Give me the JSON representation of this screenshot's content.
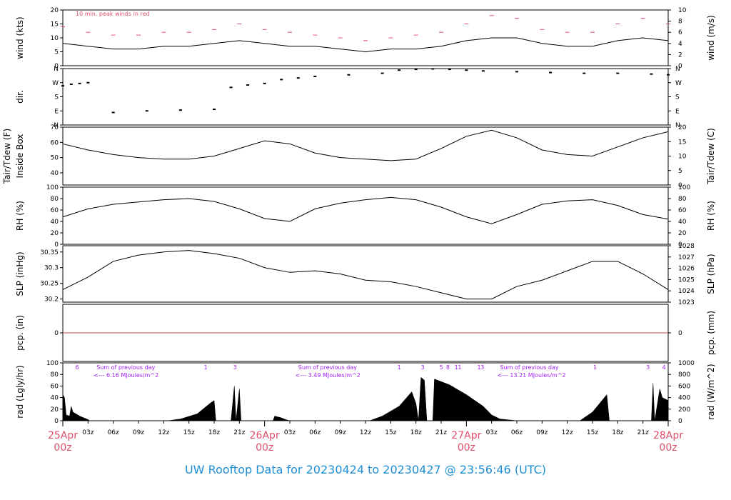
{
  "footer": {
    "title": "UW Rooftop Data for 20230424  to  20230427 @ 23:56:46  (UTC)"
  },
  "colors": {
    "peak": "#e0506a",
    "solar_labels": "#a020f0",
    "title": "#1f8fd6",
    "precip_line": "#c0504d"
  },
  "chart_data": [
    {
      "id": "wind",
      "type": "line",
      "ylabel": "wind (kts)",
      "ylabel2": "wind (m/s)",
      "ylim": [
        0,
        20
      ],
      "yticks": [
        0,
        5,
        10,
        15,
        20
      ],
      "y2ticks": [
        0,
        2,
        4,
        6,
        8,
        10
      ],
      "annotation": "10 min. peak winds in red",
      "series": [
        {
          "role": "mean",
          "color": "#000000",
          "x": [
            0,
            3,
            6,
            9,
            12,
            15,
            18,
            21,
            24,
            27,
            30,
            33,
            36,
            39,
            42,
            45,
            48,
            51,
            54,
            57,
            60,
            63,
            66,
            69,
            72
          ],
          "y": [
            8,
            7,
            6,
            6,
            7,
            7,
            8,
            9,
            8,
            7,
            7,
            6,
            5,
            6,
            6,
            7,
            9,
            10,
            10,
            8,
            7,
            7,
            9,
            10,
            9
          ]
        },
        {
          "role": "peak",
          "color": "#e0506a",
          "x": [
            0,
            3,
            6,
            9,
            12,
            15,
            18,
            21,
            24,
            27,
            30,
            33,
            36,
            39,
            42,
            45,
            48,
            51,
            54,
            57,
            60,
            63,
            66,
            69,
            72
          ],
          "y": [
            14,
            12,
            11,
            11,
            12,
            12,
            13,
            15,
            13,
            12,
            11,
            10,
            9,
            10,
            11,
            12,
            15,
            18,
            17,
            13,
            12,
            12,
            15,
            17,
            15
          ]
        }
      ]
    },
    {
      "id": "dir",
      "type": "scatter",
      "ylabel": "dir.",
      "yticks": [
        "N",
        "E",
        "S",
        "W",
        "N"
      ],
      "ylim": [
        0,
        360
      ],
      "series": [
        {
          "name": "",
          "x": [
            0,
            1,
            2,
            3,
            6,
            10,
            14,
            18,
            20,
            22,
            24,
            26,
            28,
            30,
            34,
            38,
            40,
            42,
            44,
            46,
            48,
            50,
            54,
            58,
            62,
            66,
            70,
            72
          ],
          "y": [
            250,
            260,
            265,
            270,
            80,
            90,
            95,
            100,
            240,
            255,
            265,
            290,
            300,
            310,
            320,
            330,
            350,
            355,
            358,
            355,
            350,
            345,
            340,
            335,
            330,
            330,
            325,
            320
          ]
        }
      ]
    },
    {
      "id": "temp",
      "type": "line",
      "ylabel": "Tair/Tdew (F)",
      "ylabel_sub": "Inside Box",
      "ylabel2": "Tair/Tdew (C)",
      "ylim": [
        32,
        70
      ],
      "yticks": [
        40,
        50,
        60,
        70
      ],
      "y2ticks": [
        0,
        5,
        10,
        15,
        20
      ],
      "series": [
        {
          "name": "",
          "x": [
            0,
            3,
            6,
            9,
            12,
            15,
            18,
            21,
            24,
            27,
            30,
            33,
            36,
            39,
            42,
            45,
            48,
            51,
            54,
            57,
            60,
            63,
            66,
            69,
            72
          ],
          "y": [
            59,
            55,
            52,
            50,
            49,
            49,
            51,
            56,
            61,
            59,
            53,
            50,
            49,
            48,
            49,
            56,
            64,
            68,
            63,
            55,
            52,
            51,
            57,
            63,
            67
          ]
        }
      ]
    },
    {
      "id": "rh",
      "type": "line",
      "ylabel": "RH (%)",
      "ylabel2": "RH (%)",
      "ylim": [
        0,
        100
      ],
      "yticks": [
        0,
        20,
        40,
        60,
        80,
        100
      ],
      "y2ticks": [
        0,
        20,
        40,
        60,
        80,
        100
      ],
      "series": [
        {
          "name": "",
          "x": [
            0,
            3,
            6,
            9,
            12,
            15,
            18,
            21,
            24,
            27,
            30,
            33,
            36,
            39,
            42,
            45,
            48,
            51,
            54,
            57,
            60,
            63,
            66,
            69,
            72
          ],
          "y": [
            48,
            62,
            70,
            74,
            78,
            80,
            75,
            62,
            45,
            40,
            62,
            72,
            78,
            82,
            78,
            65,
            48,
            36,
            52,
            70,
            76,
            78,
            68,
            52,
            44
          ]
        }
      ]
    },
    {
      "id": "slp",
      "type": "line",
      "ylabel": "SLP (inHg)",
      "ylabel2": "SLP (hPa)",
      "ylim": [
        30.19,
        30.37
      ],
      "yticks": [
        30.2,
        30.25,
        30.3,
        30.35
      ],
      "y2ticks": [
        1023,
        1024,
        1025,
        1026,
        1027,
        1028
      ],
      "series": [
        {
          "name": "",
          "x": [
            0,
            3,
            6,
            9,
            12,
            15,
            18,
            21,
            24,
            27,
            30,
            33,
            36,
            39,
            42,
            45,
            48,
            51,
            54,
            57,
            60,
            63,
            66,
            69,
            72
          ],
          "y": [
            30.23,
            30.27,
            30.32,
            30.34,
            30.35,
            30.355,
            30.345,
            30.33,
            30.3,
            30.285,
            30.29,
            30.28,
            30.26,
            30.255,
            30.24,
            30.22,
            30.2,
            30.2,
            30.24,
            30.26,
            30.29,
            30.32,
            30.32,
            30.28,
            30.23
          ]
        }
      ]
    },
    {
      "id": "pcp",
      "type": "line",
      "ylabel": "pcp. (in)",
      "ylabel2": "pcp. (mm)",
      "ylim": [
        -1,
        1
      ],
      "yticks": [
        0
      ],
      "y2ticks": [
        0
      ],
      "series": [
        {
          "name": "",
          "x": [
            0,
            72
          ],
          "y": [
            0,
            0
          ]
        }
      ]
    },
    {
      "id": "rad",
      "type": "area",
      "ylabel": "rad (Lgly/hr)",
      "ylabel2": "rad (W/m^2)",
      "ylim": [
        0,
        100
      ],
      "yticks": [
        0,
        20,
        40,
        60,
        80,
        100
      ],
      "y2ticks": [
        0,
        200,
        400,
        600,
        800,
        1000
      ],
      "day_notes": [
        {
          "x": 4,
          "line1": "Sum of previous day",
          "line2": "<--- 6.16 MJoules/m^2"
        },
        {
          "x": 28,
          "line1": "Sum of previous day",
          "line2": "<--- 3.49 MJoules/m^2"
        },
        {
          "x": 52,
          "line1": "Sum of previous day",
          "line2": "<--- 13.21 MJoules/m^2"
        }
      ],
      "top_numbers": [
        {
          "x": 1.7,
          "text": "6"
        },
        {
          "x": 17,
          "text": "1"
        },
        {
          "x": 20.5,
          "text": "3"
        },
        {
          "x": 40,
          "text": "1"
        },
        {
          "x": 42.8,
          "text": "3"
        },
        {
          "x": 45,
          "text": "5"
        },
        {
          "x": 45.8,
          "text": "8"
        },
        {
          "x": 46.8,
          "text": "1"
        },
        {
          "x": 47.2,
          "text": "1"
        },
        {
          "x": 49.5,
          "text": "1"
        },
        {
          "x": 49.9,
          "text": "3"
        },
        {
          "x": 63.3,
          "text": "1"
        },
        {
          "x": 69.6,
          "text": "3"
        },
        {
          "x": 71.5,
          "text": "4"
        }
      ],
      "series": [
        {
          "name": "",
          "x": [
            0,
            0.2,
            0.4,
            0.8,
            1,
            1.2,
            2,
            3,
            3.2,
            4,
            12.5,
            14,
            16,
            17.5,
            18,
            18.2,
            20,
            20.4,
            20.6,
            21,
            21.2,
            25,
            25.2,
            26,
            26.5,
            27,
            36.5,
            38,
            40,
            41.5,
            42,
            42.3,
            42.6,
            43,
            43.3,
            44,
            44.2,
            46,
            48,
            50,
            51,
            52,
            54,
            61.5,
            63,
            64.7,
            65,
            70,
            70.2,
            70.4,
            71,
            71.3,
            72
          ],
          "y": [
            45,
            40,
            10,
            8,
            25,
            15,
            8,
            2,
            0,
            0,
            0,
            3,
            12,
            30,
            35,
            0,
            0,
            60,
            0,
            55,
            0,
            0,
            8,
            5,
            2,
            0,
            0,
            8,
            25,
            50,
            30,
            0,
            75,
            70,
            0,
            0,
            72,
            62,
            45,
            25,
            10,
            3,
            0,
            0,
            15,
            45,
            0,
            0,
            65,
            0,
            55,
            40,
            35
          ]
        }
      ]
    },
    {
      "id": "xaxis",
      "type": "table",
      "xlim": [
        0,
        72
      ],
      "hour_ticks": [
        {
          "x": 3,
          "label": "03z"
        },
        {
          "x": 6,
          "label": "06z"
        },
        {
          "x": 9,
          "label": "09z"
        },
        {
          "x": 12,
          "label": "12z"
        },
        {
          "x": 15,
          "label": "15z"
        },
        {
          "x": 18,
          "label": "18z"
        },
        {
          "x": 21,
          "label": "21z"
        },
        {
          "x": 27,
          "label": "03z"
        },
        {
          "x": 30,
          "label": "06z"
        },
        {
          "x": 33,
          "label": "09z"
        },
        {
          "x": 36,
          "label": "12z"
        },
        {
          "x": 39,
          "label": "15z"
        },
        {
          "x": 42,
          "label": "18z"
        },
        {
          "x": 45,
          "label": "21z"
        },
        {
          "x": 51,
          "label": "03z"
        },
        {
          "x": 54,
          "label": "06z"
        },
        {
          "x": 57,
          "label": "09z"
        },
        {
          "x": 60,
          "label": "12z"
        },
        {
          "x": 63,
          "label": "15z"
        },
        {
          "x": 66,
          "label": "18z"
        },
        {
          "x": 69,
          "label": "21z"
        }
      ],
      "day_ticks": [
        {
          "x": 0,
          "date": "25Apr",
          "hour": "00z"
        },
        {
          "x": 24,
          "date": "26Apr",
          "hour": "00z"
        },
        {
          "x": 48,
          "date": "27Apr",
          "hour": "00z"
        },
        {
          "x": 72,
          "date": "28Apr",
          "hour": "00z"
        }
      ]
    }
  ]
}
